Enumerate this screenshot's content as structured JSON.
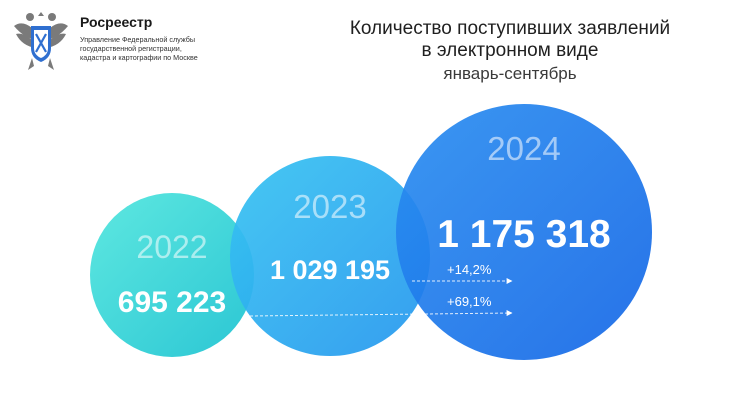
{
  "org": {
    "name": "Росреестр",
    "subtitle_lines": [
      "Управление Федеральной службы",
      "государственной регистрации,",
      "кадастра и картографии по Москве"
    ],
    "emblem_icon": "double-headed-eagle-emblem"
  },
  "title": {
    "line1": "Количество поступивших заявлений",
    "line2": "в электронном виде",
    "subtitle": "январь-сентябрь"
  },
  "chart_data": {
    "type": "bubble",
    "categories": [
      "2022",
      "2023",
      "2024"
    ],
    "values": [
      695223,
      1029195,
      1175318
    ],
    "value_labels": [
      "695 223",
      "1 029 195",
      "1 175 318"
    ],
    "annotations": [
      {
        "text": "+14,2%",
        "from": "2023",
        "to": "2024"
      },
      {
        "text": "+69,1%",
        "from": "2022",
        "to": "2024"
      }
    ],
    "colors": [
      "#45d8d6",
      "#2aa3f0",
      "#1a78ec"
    ]
  }
}
